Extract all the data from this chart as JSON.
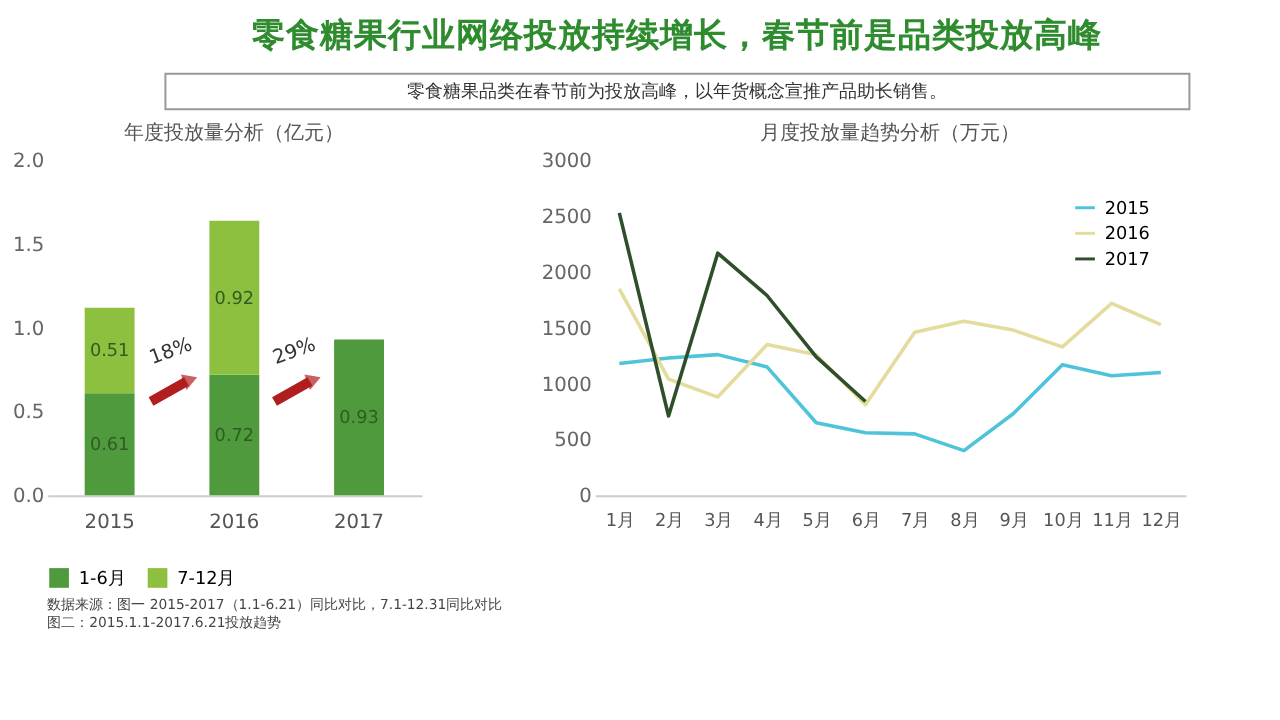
{
  "chart_data": [
    {
      "type": "bar",
      "title": "年度投放量分析（亿元）",
      "stacked": true,
      "data_labels": true,
      "legend": "bottom",
      "grid": false,
      "annotations": [
        "零食糖果行业网络投放持续增长，春节前是品类投放高峰",
        "零食糖果品类在春节前为投放高峰，以年货概念宣推产品助长销售。",
        "18%",
        "29%"
      ],
      "categories": [
        "2015",
        "2016",
        "2017"
      ],
      "ylim": [
        0,
        2
      ],
      "yticks": [
        {
          "value": 0,
          "label": "0.0"
        },
        {
          "value": 0.5,
          "label": "0.5"
        },
        {
          "value": 1,
          "label": "1.0"
        },
        {
          "value": 1.5,
          "label": "1.5"
        },
        {
          "value": 2,
          "label": "2.0"
        }
      ],
      "series": [
        {
          "name": "1-6月",
          "color": "#4e9a3c",
          "values": [
            0.61,
            0.72,
            0.93
          ]
        },
        {
          "name": "7-12月",
          "color": "#8dc03f",
          "values": [
            0.51,
            0.92,
            null
          ]
        }
      ]
    },
    {
      "type": "line",
      "title": "月度投放量趋势分析（万元）",
      "legend": "top right",
      "grid": false,
      "line_style": "solid",
      "marker": "none",
      "annotations": [
        "数据来源：图一 2015-2017（1.1-6.21）同比对比，7.1-12.31同比对比",
        "图二：2015.1.1-2017.6.21投放趋势"
      ],
      "categories": [
        "1月",
        "2月",
        "3月",
        "4月",
        "5月",
        "6月",
        "7月",
        "8月",
        "9月",
        "10月",
        "11月",
        "12月"
      ],
      "ylim": [
        0,
        3000
      ],
      "yticks": [
        0,
        500,
        1000,
        1500,
        2000,
        2500,
        3000
      ],
      "series": [
        {
          "name": "2015",
          "color": "#4fc3d9",
          "values": [
            1180,
            1230,
            1260,
            1150,
            650,
            560,
            550,
            400,
            730,
            1170,
            1070,
            1100
          ]
        },
        {
          "name": "2016",
          "color": "#e3dc9c",
          "values": [
            1850,
            1040,
            880,
            1350,
            1260,
            810,
            1460,
            1560,
            1480,
            1330,
            1720,
            1530
          ]
        },
        {
          "name": "2017",
          "color": "#2f4f2a",
          "values": [
            2530,
            710,
            2170,
            1790,
            1240,
            840,
            null,
            null,
            null,
            null,
            null,
            null
          ]
        }
      ]
    }
  ]
}
